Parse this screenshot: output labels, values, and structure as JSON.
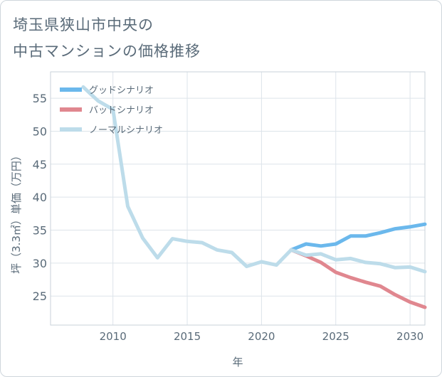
{
  "chart_data": {
    "type": "line",
    "title_lines": [
      "埼玉県狭山市中央の",
      "中古マンションの価格推移"
    ],
    "xlabel": "年",
    "ylabel": "坪（3.3㎡）単価（万円）",
    "xlim": [
      2005.8,
      2031
    ],
    "ylim": [
      20.6,
      59
    ],
    "x_ticks": [
      2010,
      2015,
      2020,
      2025,
      2030
    ],
    "y_ticks": [
      25,
      30,
      35,
      40,
      45,
      50,
      55
    ],
    "grid": true,
    "legend_position": "top-left",
    "series": [
      {
        "name": "グッドシナリオ",
        "color": "#6bb8ec",
        "x": [
          2022,
          2023,
          2024,
          2025,
          2026,
          2027,
          2028,
          2029,
          2030,
          2031
        ],
        "y": [
          32.0,
          32.9,
          32.6,
          32.9,
          34.1,
          34.1,
          34.6,
          35.2,
          35.5,
          35.9
        ]
      },
      {
        "name": "バッドシナリオ",
        "color": "#e0878f",
        "x": [
          2022,
          2023,
          2024,
          2025,
          2026,
          2027,
          2028,
          2029,
          2030,
          2031
        ],
        "y": [
          32.0,
          31.1,
          30.1,
          28.6,
          27.8,
          27.1,
          26.5,
          25.2,
          24.1,
          23.3
        ]
      },
      {
        "name": "ノーマルシナリオ",
        "color": "#bddcea",
        "x": [
          2008,
          2009,
          2010,
          2011,
          2012,
          2013,
          2014,
          2015,
          2016,
          2017,
          2018,
          2019,
          2020,
          2021,
          2022,
          2023,
          2024,
          2025,
          2026,
          2027,
          2028,
          2029,
          2030,
          2031
        ],
        "y": [
          56.7,
          54.6,
          53.3,
          38.6,
          33.8,
          30.8,
          33.7,
          33.3,
          33.1,
          32.0,
          31.6,
          29.5,
          30.2,
          29.7,
          32.0,
          31.2,
          31.4,
          30.5,
          30.7,
          30.1,
          29.9,
          29.3,
          29.4,
          28.7
        ]
      }
    ]
  }
}
